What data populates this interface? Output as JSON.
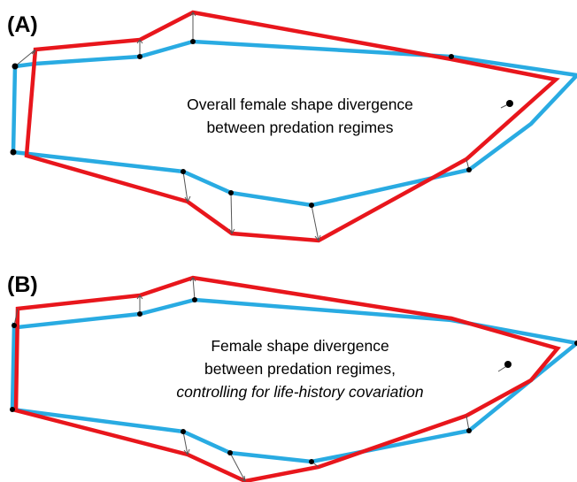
{
  "colors": {
    "shape_a": "#29abe2",
    "shape_b": "#e8161c",
    "vector": "#555555",
    "landmark": "#000000"
  },
  "panels": [
    {
      "label": "(A)",
      "caption_lines": [
        "Overall female shape divergence",
        "between predation regimes"
      ]
    },
    {
      "label": "(B)",
      "caption_lines": [
        "Female shape divergence",
        "between predation regimes,",
        "controlling for life-history covariation"
      ]
    }
  ]
}
